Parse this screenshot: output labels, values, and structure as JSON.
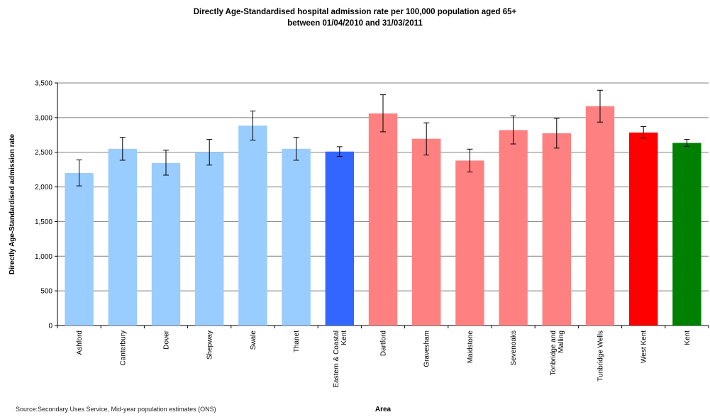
{
  "chart_data": {
    "type": "bar",
    "title_line1": "Directly Age-Standardised hospital admission rate per 100,000 population aged 65+",
    "title_line2": "between 01/04/2010 and 31/03/2011",
    "xlabel": "Area",
    "ylabel": "Directly Age-Standardised admission rate",
    "ylim": [
      0,
      3500
    ],
    "yticks": [
      0,
      500,
      1000,
      1500,
      2000,
      2500,
      3000,
      3500
    ],
    "ytick_labels": [
      "0",
      "500",
      "1,000",
      "1,500",
      "2,000",
      "2,500",
      "3,000",
      "3,500"
    ],
    "grid": true,
    "legend": "none",
    "categories": [
      [
        "Ashford"
      ],
      [
        "Canterbury"
      ],
      [
        "Dover"
      ],
      [
        "Shepway"
      ],
      [
        "Swale"
      ],
      [
        "Thanet"
      ],
      [
        "Eastern & Coastal",
        "Kent"
      ],
      [
        "Dartford"
      ],
      [
        "Gravesham"
      ],
      [
        "Maidstone"
      ],
      [
        "Sevenoaks"
      ],
      [
        "Tonbridge and",
        "Malling"
      ],
      [
        "Tunbridge Wells"
      ],
      [
        "West Kent"
      ],
      [
        "Kent"
      ]
    ],
    "values": [
      2200,
      2550,
      2345,
      2500,
      2885,
      2550,
      2510,
      3060,
      2695,
      2380,
      2820,
      2775,
      3165,
      2785,
      2635
    ],
    "error_low": [
      2015,
      2385,
      2170,
      2315,
      2675,
      2385,
      2440,
      2795,
      2460,
      2215,
      2620,
      2560,
      2935,
      2705,
      2585
    ],
    "error_high": [
      2390,
      2715,
      2530,
      2685,
      3095,
      2715,
      2580,
      3330,
      2925,
      2545,
      3025,
      2990,
      3395,
      2870,
      2685
    ],
    "colors": [
      "#99ccff",
      "#99ccff",
      "#99ccff",
      "#99ccff",
      "#99ccff",
      "#99ccff",
      "#3366ff",
      "#ff8080",
      "#ff8080",
      "#ff8080",
      "#ff8080",
      "#ff8080",
      "#ff8080",
      "#ff0000",
      "#008000"
    ]
  },
  "footer": {
    "source": "Source:Secondary Uses Service, Mid-year population estimates (ONS)"
  }
}
